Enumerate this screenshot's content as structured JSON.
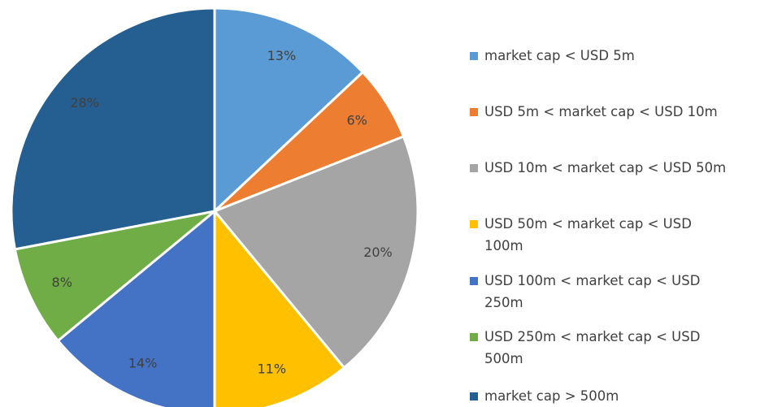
{
  "chart_data": {
    "type": "pie",
    "categories": [
      "market cap < USD 5m",
      "USD 5m < market cap < USD 10m",
      "USD 10m < market cap < USD 50m",
      "USD 50m < market cap < USD 100m",
      "USD 100m < market cap < USD 250m",
      "USD 250m < market cap < USD 500m",
      "market cap > 500m"
    ],
    "values": [
      13,
      6,
      20,
      11,
      14,
      8,
      28
    ],
    "value_labels": [
      "13%",
      "6%",
      "20%",
      "11%",
      "14%",
      "8%",
      "28%"
    ],
    "colors": [
      "#5b9bd5",
      "#ed7d31",
      "#a5a5a5",
      "#ffc000",
      "#4472c4",
      "#70ad47",
      "#255e91"
    ],
    "legend": "right"
  }
}
